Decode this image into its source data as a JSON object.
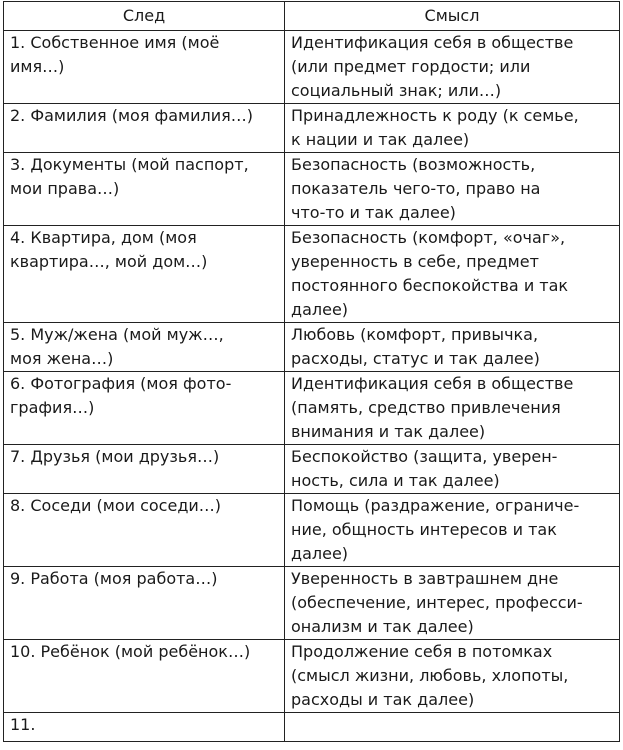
{
  "table": {
    "headers": [
      "След",
      "Смысл"
    ],
    "rows": [
      [
        "1. Собственное имя (моё\nимя…)",
        "Идентификация себя в обществе\n(или предмет гордости; или\nсоциальный знак; или…)"
      ],
      [
        "2. Фамилия (моя фамилия…)",
        "Принадлежность к роду (к семье,\nк нации и так далее)"
      ],
      [
        "3. Документы (мой паспорт,\nмои права…)",
        "Безопасность (возможность,\nпоказатель чего-то, право на\nчто-то и так далее)"
      ],
      [
        "4. Квартира, дом (моя\nквартира…, мой дом…)",
        "Безопасность (комфорт, «очаг»,\nуверенность в себе, предмет\nпостоянного беспокойства и так\nдалее)"
      ],
      [
        "5. Муж/жена (мой муж…,\nмоя жена…)",
        "Любовь (комфорт, привычка,\nрасходы, статус и так далее)"
      ],
      [
        "6. Фотография (моя фото-\nграфия…)",
        "Идентификация себя в обществе\n(память, средство привлечения\nвнимания и так далее)"
      ],
      [
        "7. Друзья (мои друзья…)",
        "Беспокойство (защита, уверен-\nность, сила и так далее)"
      ],
      [
        "8. Соседи (мои соседи…)",
        "Помощь (раздражение, ограниче-\nние, общность интересов и так\nдалее)"
      ],
      [
        "9. Работа (моя работа…)",
        "Уверенность в завтрашнем дне\n(обеспечение, интерес, професси-\nонализм и так далее)"
      ],
      [
        "10. Ребёнок (мой ребёнок…)",
        "Продолжение себя в потомках\n(смысл жизни, любовь, хлопоты,\nрасходы и так далее)"
      ],
      [
        "11.",
        ""
      ]
    ]
  }
}
